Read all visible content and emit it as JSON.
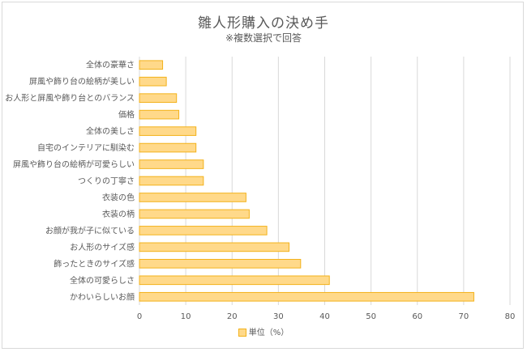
{
  "chart_data": {
    "type": "bar",
    "orientation": "horizontal",
    "title": "雛人形購入の決め手",
    "subtitle": "※複数選択で回答",
    "categories": [
      "全体の豪華さ",
      "屏風や飾り台の絵柄が美しい",
      "お人形と屏風や飾り台とのバランス",
      "価格",
      "全体の美しさ",
      "自宅のインテリアに馴染む",
      "屏風や飾り台の絵柄が可愛らしい",
      "つくりの丁寧さ",
      "衣装の色",
      "衣装の柄",
      "お顔が我が子に似ている",
      "お人形のサイズ感",
      "飾ったときのサイズ感",
      "全体の可愛らしさ",
      "かわいらしいお顔"
    ],
    "series": [
      {
        "name": "単位（%）",
        "values": [
          5,
          5.8,
          8,
          8.5,
          12.2,
          12.2,
          13.8,
          13.8,
          23,
          23.7,
          27.5,
          32.3,
          34.8,
          41,
          72.2
        ]
      }
    ],
    "xlim": [
      0,
      80
    ],
    "xticks": [
      0,
      10,
      20,
      30,
      40,
      50,
      60,
      70,
      80
    ],
    "grid": true,
    "legend": "bottom",
    "colors": {
      "bar_fill": "#ffd98a",
      "bar_stroke": "#f3b21b",
      "grid": "#d9d9d9",
      "text": "#595959"
    }
  }
}
